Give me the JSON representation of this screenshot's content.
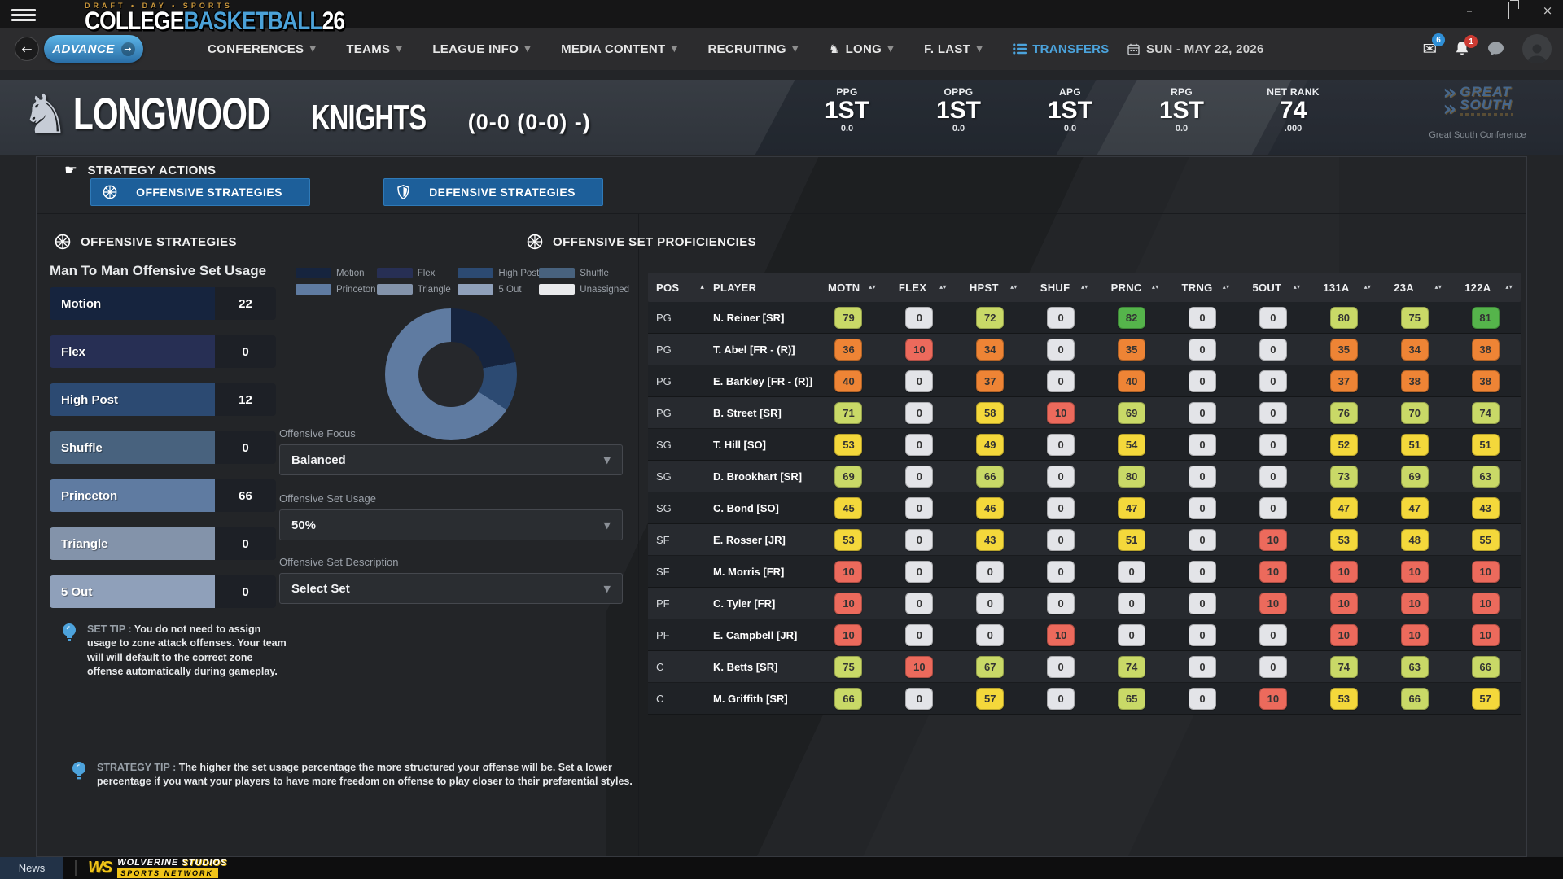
{
  "logo": {
    "kicker": "DRAFT • DAY • SPORTS",
    "college": "COLLEGE",
    "basketball": "BASKETBALL",
    "year": "26"
  },
  "nav": {
    "advance": "ADVANCE",
    "items": [
      {
        "label": "CONFERENCES",
        "caret": true
      },
      {
        "label": "TEAMS",
        "caret": true
      },
      {
        "label": "LEAGUE INFO",
        "caret": true
      },
      {
        "label": "MEDIA CONTENT",
        "caret": true
      },
      {
        "label": "RECRUITING",
        "caret": true
      },
      {
        "label": "LONG",
        "caret": true,
        "icon": "knight"
      },
      {
        "label": "F. LAST",
        "caret": true
      },
      {
        "label": "TRANSFERS",
        "caret": false,
        "icon": "list",
        "active": true
      }
    ],
    "date": "SUN - MAY 22, 2026",
    "mail_badge": "6",
    "alert_badge": "1"
  },
  "team": {
    "name": "LONGWOOD",
    "nickname": "KNIGHTS",
    "record": "(0-0 (0-0)  -)",
    "stats": [
      {
        "label": "PPG",
        "rank": "1ST",
        "value": "0.0"
      },
      {
        "label": "OPPG",
        "rank": "1ST",
        "value": "0.0"
      },
      {
        "label": "APG",
        "rank": "1ST",
        "value": "0.0"
      },
      {
        "label": "RPG",
        "rank": "1ST",
        "value": "0.0"
      },
      {
        "label": "NET RANK",
        "rank": "74",
        "value": ".000"
      }
    ],
    "conference": {
      "line1": "GREAT",
      "line2": "SOUTH",
      "caption": "Great South Conference"
    }
  },
  "strategy_actions": {
    "title": "STRATEGY ACTIONS",
    "offensive": "OFFENSIVE STRATEGIES",
    "defensive": "DEFENSIVE STRATEGIES"
  },
  "offense_panel": {
    "title": "OFFENSIVE STRATEGIES",
    "subtitle": "Man To Man Offensive Set Usage",
    "set_tip_label": "SET TIP :",
    "set_tip_text": "You do not need to assign usage to zone attack offenses. Your team will will default to the correct zone offense automatically during gameplay."
  },
  "chart_data": {
    "type": "pie",
    "donut": true,
    "title": "Man To Man Offensive Set Usage",
    "categories": [
      "Motion",
      "Flex",
      "High Post",
      "Shuffle",
      "Princeton",
      "Triangle",
      "5 Out",
      "Unassigned"
    ],
    "values": [
      22,
      0,
      12,
      0,
      66,
      0,
      0,
      0
    ],
    "colors": [
      "#16243e",
      "#272f54",
      "#2c4a72",
      "#48627e",
      "#5f7ba1",
      "#8393aa",
      "#8fa0ba",
      "#e9eaec"
    ],
    "legend_position": "top"
  },
  "dropdowns": [
    {
      "label": "Offensive Focus",
      "value": "Balanced"
    },
    {
      "label": "Offensive Set Usage",
      "value": "50%"
    },
    {
      "label": "Offensive Set Description",
      "value": "Select Set"
    }
  ],
  "proficiencies": {
    "title": "OFFENSIVE SET PROFICIENCIES",
    "columns": [
      "POS",
      "PLAYER",
      "MOTN",
      "FLEX",
      "HPST",
      "SHUF",
      "PRNC",
      "TRNG",
      "5OUT",
      "131A",
      "23A",
      "122A"
    ],
    "rows": [
      {
        "pos": "PG",
        "player": "N. Reiner [SR]",
        "values": [
          79,
          0,
          72,
          0,
          82,
          0,
          0,
          80,
          75,
          81
        ]
      },
      {
        "pos": "PG",
        "player": "T. Abel [FR - (R)]",
        "values": [
          36,
          10,
          34,
          0,
          35,
          0,
          0,
          35,
          34,
          38
        ]
      },
      {
        "pos": "PG",
        "player": "E. Barkley [FR - (R)]",
        "values": [
          40,
          0,
          37,
          0,
          40,
          0,
          0,
          37,
          38,
          38
        ]
      },
      {
        "pos": "PG",
        "player": "B. Street [SR]",
        "values": [
          71,
          0,
          58,
          10,
          69,
          0,
          0,
          76,
          70,
          74
        ]
      },
      {
        "pos": "SG",
        "player": "T. Hill [SO]",
        "values": [
          53,
          0,
          49,
          0,
          54,
          0,
          0,
          52,
          51,
          51
        ]
      },
      {
        "pos": "SG",
        "player": "D. Brookhart [SR]",
        "values": [
          69,
          0,
          66,
          0,
          80,
          0,
          0,
          73,
          69,
          63
        ]
      },
      {
        "pos": "SG",
        "player": "C. Bond [SO]",
        "values": [
          45,
          0,
          46,
          0,
          47,
          0,
          0,
          47,
          47,
          43
        ]
      },
      {
        "pos": "SF",
        "player": "E. Rosser [JR]",
        "values": [
          53,
          0,
          43,
          0,
          51,
          0,
          10,
          53,
          48,
          55
        ]
      },
      {
        "pos": "SF",
        "player": "M. Morris [FR]",
        "values": [
          10,
          0,
          0,
          0,
          0,
          0,
          10,
          10,
          10,
          10
        ]
      },
      {
        "pos": "PF",
        "player": "C. Tyler [FR]",
        "values": [
          10,
          0,
          0,
          0,
          0,
          0,
          10,
          10,
          10,
          10
        ]
      },
      {
        "pos": "PF",
        "player": "E. Campbell [JR]",
        "values": [
          10,
          0,
          0,
          10,
          0,
          0,
          0,
          10,
          10,
          10
        ]
      },
      {
        "pos": "C",
        "player": "K. Betts [SR]",
        "values": [
          75,
          10,
          67,
          0,
          74,
          0,
          0,
          74,
          63,
          66
        ]
      },
      {
        "pos": "C",
        "player": "M. Griffith [SR]",
        "values": [
          66,
          0,
          57,
          0,
          65,
          0,
          10,
          53,
          66,
          57
        ]
      }
    ]
  },
  "strategy_tip": {
    "label": "STRATEGY TIP :",
    "text": "The higher the set usage percentage the more structured your offense will be. Set a lower percentage if you want your players to have more freedom on offense to play closer to their preferential styles."
  },
  "footer": {
    "news": "News",
    "studio_word1": "WOLVERINE",
    "studio_word2": "STUDIOS",
    "studio_line2": "SPORTS NETWORK"
  },
  "colors": {
    "accent_blue": "#4ba3dc",
    "button_blue": "#1d5f9a",
    "badge_text": "#333333",
    "badge": {
      "zero": "#e3e4e8",
      "low": "#ec6a5c",
      "mid_low": "#ee8435",
      "mid": "#f4d83b",
      "high": "#c9d967",
      "top": "#55b44b"
    }
  }
}
